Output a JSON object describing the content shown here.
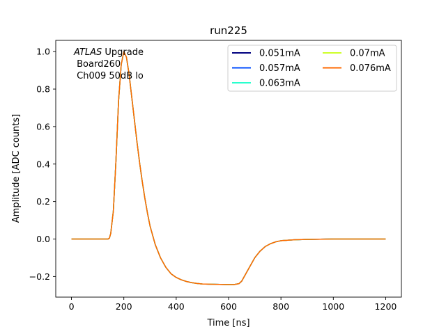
{
  "chart_data": {
    "type": "line",
    "title": "run225",
    "xlabel": "Time [ns]",
    "ylabel": "Amplitude [ADC counts]",
    "xlim": [
      -60,
      1260
    ],
    "ylim": [
      -0.31,
      1.06
    ],
    "xticks": [
      0,
      200,
      400,
      600,
      800,
      1000,
      1200
    ],
    "xtick_labels": [
      "0",
      "200",
      "400",
      "600",
      "800",
      "1000",
      "1200"
    ],
    "yticks": [
      -0.2,
      0.0,
      0.2,
      0.4,
      0.6,
      0.8,
      1.0
    ],
    "ytick_labels": [
      "−0.2",
      "0.0",
      "0.2",
      "0.4",
      "0.6",
      "0.8",
      "1.0"
    ],
    "grid": false,
    "legend": {
      "placement": "top-right",
      "columns": 2
    },
    "annotation": {
      "line1_italic": "ATLAS",
      "line1_rest": " Upgrade",
      "line2": " Board260",
      "line3": " Ch009 50dB lo"
    },
    "x": [
      0,
      50,
      100,
      130,
      140,
      145,
      150,
      160,
      170,
      180,
      190,
      200,
      210,
      220,
      230,
      240,
      250,
      260,
      270,
      280,
      290,
      300,
      320,
      340,
      360,
      380,
      400,
      420,
      440,
      460,
      480,
      500,
      550,
      600,
      620,
      640,
      650,
      660,
      680,
      700,
      720,
      740,
      760,
      780,
      800,
      850,
      900,
      950,
      1000,
      1100,
      1200
    ],
    "series": [
      {
        "name": "0.051mA",
        "color": "#00007f",
        "values": [
          0,
          0,
          0,
          0,
          0,
          0.005,
          0.03,
          0.15,
          0.42,
          0.74,
          0.93,
          1.0,
          0.97,
          0.88,
          0.76,
          0.64,
          0.52,
          0.41,
          0.31,
          0.22,
          0.14,
          0.07,
          -0.03,
          -0.1,
          -0.15,
          -0.185,
          -0.205,
          -0.218,
          -0.227,
          -0.233,
          -0.237,
          -0.24,
          -0.242,
          -0.243,
          -0.243,
          -0.238,
          -0.225,
          -0.2,
          -0.15,
          -0.1,
          -0.065,
          -0.04,
          -0.025,
          -0.015,
          -0.009,
          -0.004,
          -0.002,
          -0.001,
          0,
          0,
          0
        ]
      },
      {
        "name": "0.057mA",
        "color": "#004cff",
        "values": [
          0,
          0,
          0,
          0,
          0,
          0.005,
          0.03,
          0.15,
          0.42,
          0.74,
          0.93,
          1.0,
          0.97,
          0.88,
          0.76,
          0.64,
          0.52,
          0.41,
          0.31,
          0.22,
          0.14,
          0.07,
          -0.03,
          -0.1,
          -0.15,
          -0.185,
          -0.205,
          -0.218,
          -0.227,
          -0.233,
          -0.237,
          -0.24,
          -0.242,
          -0.243,
          -0.243,
          -0.238,
          -0.225,
          -0.2,
          -0.15,
          -0.1,
          -0.065,
          -0.04,
          -0.025,
          -0.015,
          -0.009,
          -0.004,
          -0.002,
          -0.001,
          0,
          0,
          0
        ]
      },
      {
        "name": "0.063mA",
        "color": "#29ffce",
        "values": [
          0,
          0,
          0,
          0,
          0,
          0.005,
          0.03,
          0.15,
          0.42,
          0.74,
          0.93,
          1.0,
          0.97,
          0.88,
          0.76,
          0.64,
          0.52,
          0.41,
          0.31,
          0.22,
          0.14,
          0.07,
          -0.03,
          -0.1,
          -0.15,
          -0.185,
          -0.205,
          -0.218,
          -0.227,
          -0.233,
          -0.237,
          -0.24,
          -0.242,
          -0.243,
          -0.243,
          -0.238,
          -0.225,
          -0.2,
          -0.15,
          -0.1,
          -0.065,
          -0.04,
          -0.025,
          -0.015,
          -0.009,
          -0.004,
          -0.002,
          -0.001,
          0,
          0,
          0
        ]
      },
      {
        "name": "0.07mA",
        "color": "#ceff29",
        "values": [
          0,
          0,
          0,
          0,
          0,
          0.005,
          0.03,
          0.15,
          0.42,
          0.74,
          0.93,
          1.0,
          0.97,
          0.88,
          0.76,
          0.64,
          0.52,
          0.41,
          0.31,
          0.22,
          0.14,
          0.07,
          -0.03,
          -0.1,
          -0.15,
          -0.185,
          -0.205,
          -0.218,
          -0.227,
          -0.233,
          -0.237,
          -0.24,
          -0.242,
          -0.243,
          -0.243,
          -0.238,
          -0.225,
          -0.2,
          -0.15,
          -0.1,
          -0.065,
          -0.04,
          -0.025,
          -0.015,
          -0.009,
          -0.004,
          -0.002,
          -0.001,
          0,
          0,
          0
        ]
      },
      {
        "name": "0.076mA",
        "color": "#ff6800",
        "values": [
          0,
          0,
          0,
          0,
          0,
          0.005,
          0.03,
          0.15,
          0.42,
          0.74,
          0.93,
          1.0,
          0.97,
          0.88,
          0.76,
          0.64,
          0.52,
          0.41,
          0.31,
          0.22,
          0.14,
          0.07,
          -0.03,
          -0.1,
          -0.15,
          -0.185,
          -0.205,
          -0.218,
          -0.227,
          -0.233,
          -0.237,
          -0.24,
          -0.242,
          -0.243,
          -0.243,
          -0.238,
          -0.225,
          -0.2,
          -0.15,
          -0.1,
          -0.065,
          -0.04,
          -0.025,
          -0.015,
          -0.009,
          -0.004,
          -0.002,
          -0.001,
          0,
          0,
          0
        ]
      }
    ]
  }
}
